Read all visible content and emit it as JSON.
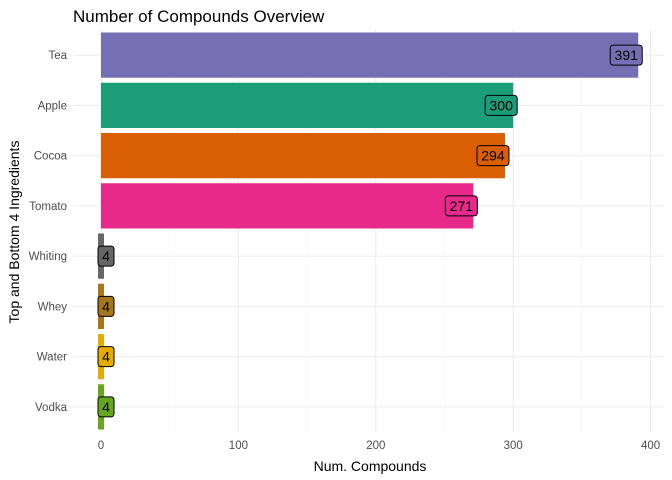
{
  "chart_data": {
    "type": "bar",
    "orientation": "horizontal",
    "title": "Number of Compounds Overview",
    "xlabel": "Num. Compounds",
    "ylabel": "Top and Bottom 4 Ingredients",
    "xlim": [
      0,
      405
    ],
    "xticks": [
      0,
      100,
      200,
      300,
      400
    ],
    "grid": true,
    "legend": "none",
    "categories": [
      "Tea",
      "Apple",
      "Cocoa",
      "Tomato",
      "Whiting",
      "Whey",
      "Water",
      "Vodka"
    ],
    "values": [
      391,
      300,
      294,
      271,
      4,
      4,
      4,
      4
    ],
    "colors": [
      "#7570b3",
      "#1b9e77",
      "#d95f02",
      "#e7298a",
      "#666666",
      "#a6761d",
      "#e6ab02",
      "#66a61e"
    ]
  }
}
